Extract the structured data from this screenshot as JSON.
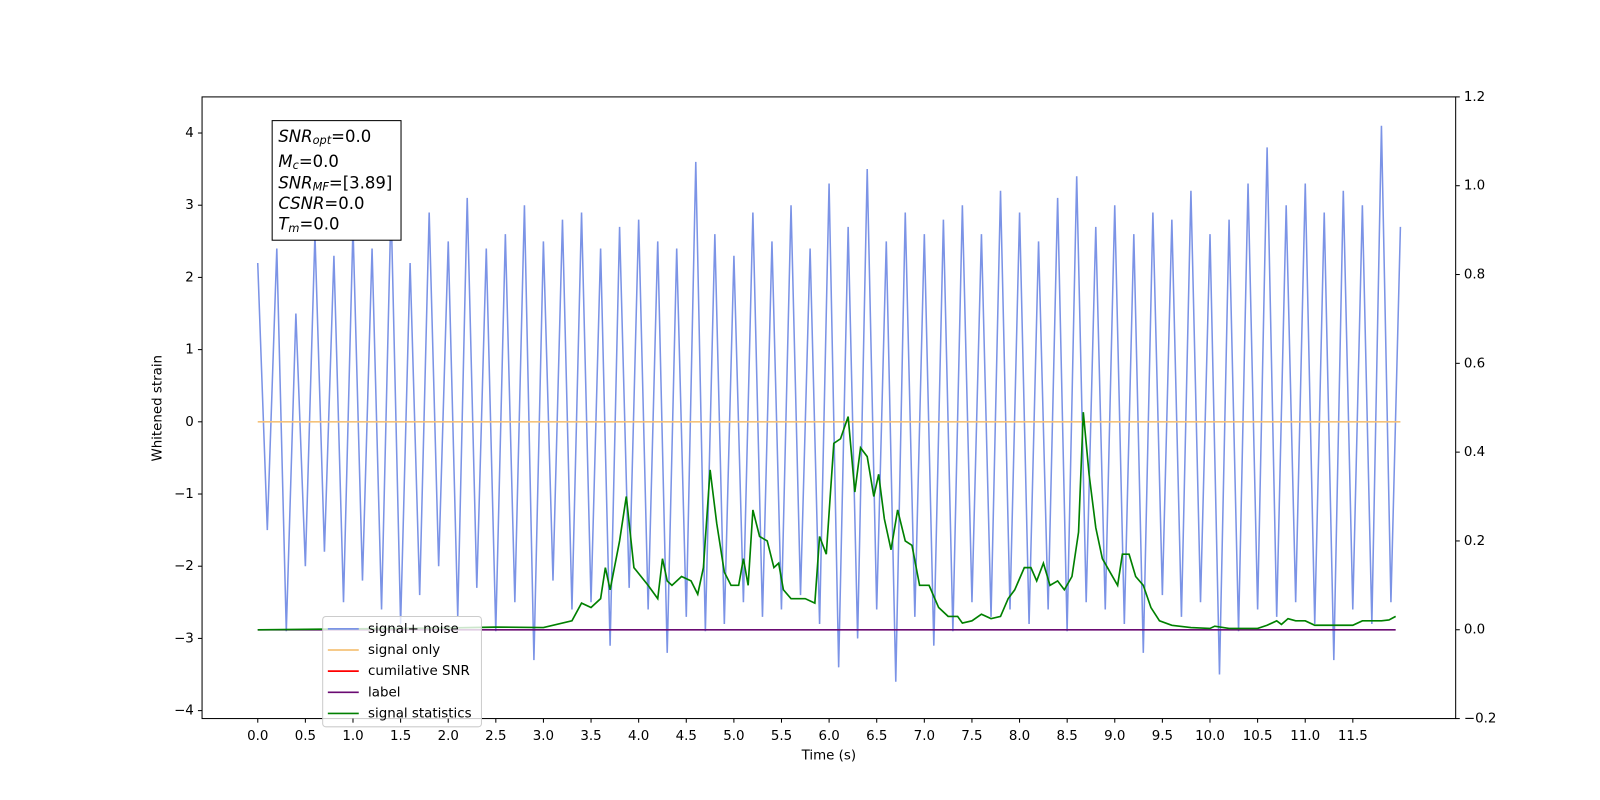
{
  "chart_data": {
    "type": "line",
    "xlabel": "Time (s)",
    "ylabel": "Whitened strain",
    "xlim": [
      -0.585,
      12.58
    ],
    "ylim": [
      -4.11,
      4.5
    ],
    "y2lim": [
      -0.2,
      1.2
    ],
    "xticks": [
      {
        "value": 0,
        "label": "0.0"
      },
      {
        "value": 0.5,
        "label": "0.5"
      },
      {
        "value": 1,
        "label": "1.0"
      },
      {
        "value": 1.5,
        "label": "1.5"
      },
      {
        "value": 2,
        "label": "2.0"
      },
      {
        "value": 2.5,
        "label": "2.5"
      },
      {
        "value": 3,
        "label": "3.0"
      },
      {
        "value": 3.5,
        "label": "3.5"
      },
      {
        "value": 4,
        "label": "4.0"
      },
      {
        "value": 4.5,
        "label": "4.5"
      },
      {
        "value": 5,
        "label": "5.0"
      },
      {
        "value": 5.5,
        "label": "5.5"
      },
      {
        "value": 6,
        "label": "6.0"
      },
      {
        "value": 6.5,
        "label": "6.5"
      },
      {
        "value": 7,
        "label": "7.0"
      },
      {
        "value": 7.5,
        "label": "7.5"
      },
      {
        "value": 8,
        "label": "8.0"
      },
      {
        "value": 8.5,
        "label": "8.5"
      },
      {
        "value": 9,
        "label": "9.0"
      },
      {
        "value": 9.5,
        "label": "9.5"
      },
      {
        "value": 10,
        "label": "10.0"
      },
      {
        "value": 10.5,
        "label": "10.5"
      },
      {
        "value": 11,
        "label": "11.0"
      },
      {
        "value": 11.5,
        "label": "11.5"
      }
    ],
    "yticks": [
      {
        "value": -4,
        "label": "−4"
      },
      {
        "value": -3,
        "label": "−3"
      },
      {
        "value": -2,
        "label": "−2"
      },
      {
        "value": -1,
        "label": "−1"
      },
      0,
      1,
      2,
      3,
      4
    ],
    "y2ticks": [
      {
        "value": -0.2,
        "label": "−0.2"
      },
      {
        "value": 0,
        "label": "0.0"
      },
      0.2,
      0.4,
      0.6,
      0.8,
      {
        "value": 1,
        "label": "1.0"
      },
      1.2
    ],
    "annotations": [
      {
        "main": "SNR",
        "sub": "opt",
        "text": "=0.0"
      },
      {
        "main": "M",
        "sub": "c",
        "text": "=0.0"
      },
      {
        "main": "SNR",
        "sub": "MF",
        "text": "=[3.89]"
      },
      {
        "main": "CSNR",
        "text": "=0.0"
      },
      {
        "main": "T",
        "sub": "m",
        "text": "=0.0"
      }
    ],
    "series": [
      {
        "name": "signal+ noise",
        "color": "#7b93e6",
        "x": [
          0,
          0.1,
          0.2,
          0.3,
          0.4,
          0.5,
          0.6,
          0.7,
          0.8,
          0.9,
          1,
          1.1,
          1.2,
          1.3,
          1.4,
          1.5,
          1.6,
          1.7,
          1.8,
          1.9,
          2,
          2.1,
          2.2,
          2.3,
          2.4,
          2.5,
          2.6,
          2.7,
          2.8,
          2.9,
          3,
          3.1,
          3.2,
          3.3,
          3.4,
          3.5,
          3.6,
          3.7,
          3.8,
          3.9,
          4,
          4.1,
          4.2,
          4.3,
          4.4,
          4.5,
          4.6,
          4.7,
          4.8,
          4.9,
          5,
          5.1,
          5.2,
          5.3,
          5.4,
          5.5,
          5.6,
          5.7,
          5.8,
          5.9,
          6,
          6.1,
          6.2,
          6.3,
          6.4,
          6.5,
          6.6,
          6.7,
          6.8,
          6.9,
          7,
          7.1,
          7.2,
          7.3,
          7.4,
          7.5,
          7.6,
          7.7,
          7.8,
          7.9,
          8,
          8.1,
          8.2,
          8.3,
          8.4,
          8.5,
          8.6,
          8.7,
          8.8,
          8.9,
          9,
          9.1,
          9.2,
          9.3,
          9.4,
          9.5,
          9.6,
          9.7,
          9.8,
          9.9,
          10,
          10.1,
          10.2,
          10.3,
          10.4,
          10.5,
          10.6,
          10.7,
          10.8,
          10.9,
          11,
          11.1,
          11.2,
          11.3,
          11.4,
          11.5,
          11.6,
          11.7,
          11.8,
          11.9,
          12
        ],
        "values": [
          2.2,
          -1.5,
          2.4,
          -2.9,
          1.5,
          -2.0,
          2.6,
          -1.8,
          2.3,
          -2.5,
          2.7,
          -2.2,
          2.4,
          -2.6,
          3.0,
          -2.8,
          2.2,
          -2.4,
          2.9,
          -2.0,
          2.5,
          -2.7,
          3.1,
          -2.3,
          2.4,
          -2.9,
          2.6,
          -2.5,
          3.0,
          -3.3,
          2.5,
          -2.2,
          2.8,
          -2.6,
          2.9,
          -2.5,
          2.4,
          -3.1,
          2.7,
          -2.3,
          2.8,
          -2.6,
          2.5,
          -3.2,
          2.4,
          -2.7,
          3.6,
          -2.9,
          2.6,
          -2.8,
          2.3,
          -2.5,
          2.9,
          -2.7,
          2.5,
          -2.6,
          3.0,
          -2.4,
          2.4,
          -2.8,
          3.3,
          -3.4,
          2.7,
          -3.0,
          3.5,
          -2.6,
          2.5,
          -3.6,
          2.9,
          -2.7,
          2.6,
          -3.1,
          2.8,
          -2.9,
          3.0,
          -2.5,
          2.6,
          -2.7,
          3.2,
          -2.6,
          2.9,
          -2.8,
          2.5,
          -2.6,
          3.1,
          -2.9,
          3.4,
          -2.5,
          2.7,
          -2.6,
          3.0,
          -2.8,
          2.6,
          -3.2,
          2.9,
          -2.4,
          2.8,
          -2.7,
          3.2,
          -2.5,
          2.6,
          -3.5,
          2.8,
          -2.9,
          3.3,
          -2.6,
          3.8,
          -2.7,
          3.0,
          -2.5,
          3.3,
          -2.8,
          2.9,
          -3.3,
          3.2,
          -2.6,
          3.0,
          -2.8,
          4.1,
          -2.5,
          2.7
        ]
      },
      {
        "name": "signal only",
        "color": "#f5c27a",
        "x": [
          0,
          12
        ],
        "values": [
          0,
          0
        ]
      },
      {
        "name": "cumilative SNR",
        "color": "#ff0000",
        "x": [],
        "values": []
      },
      {
        "name": "label",
        "color": "#6a0a72",
        "axis": "y2",
        "x": [
          0,
          11.95
        ],
        "values": [
          0,
          0
        ]
      },
      {
        "name": "signal statistics",
        "color": "#008000",
        "axis": "y2",
        "x": [
          0,
          1,
          2,
          2.5,
          3,
          3.3,
          3.4,
          3.5,
          3.6,
          3.65,
          3.7,
          3.8,
          3.87,
          3.95,
          4.1,
          4.2,
          4.25,
          4.3,
          4.35,
          4.45,
          4.55,
          4.62,
          4.68,
          4.75,
          4.82,
          4.9,
          4.97,
          5.05,
          5.1,
          5.15,
          5.2,
          5.27,
          5.35,
          5.42,
          5.47,
          5.52,
          5.6,
          5.75,
          5.85,
          5.9,
          5.97,
          6.05,
          6.12,
          6.2,
          6.27,
          6.33,
          6.4,
          6.47,
          6.52,
          6.58,
          6.65,
          6.72,
          6.8,
          6.87,
          6.95,
          7.05,
          7.15,
          7.25,
          7.35,
          7.4,
          7.5,
          7.6,
          7.7,
          7.8,
          7.88,
          7.95,
          8.05,
          8.12,
          8.18,
          8.25,
          8.32,
          8.4,
          8.47,
          8.55,
          8.62,
          8.67,
          8.73,
          8.8,
          8.87,
          8.95,
          9.03,
          9.08,
          9.15,
          9.22,
          9.3,
          9.38,
          9.47,
          9.6,
          9.8,
          10,
          10.05,
          10.2,
          10.5,
          10.6,
          10.7,
          10.75,
          10.82,
          10.9,
          11,
          11.1,
          11.3,
          11.5,
          11.6,
          11.7,
          11.8,
          11.88,
          11.95
        ],
        "values": [
          0,
          0.002,
          0.004,
          0.006,
          0.005,
          0.02,
          0.06,
          0.05,
          0.07,
          0.14,
          0.09,
          0.2,
          0.3,
          0.14,
          0.1,
          0.07,
          0.16,
          0.11,
          0.1,
          0.12,
          0.11,
          0.08,
          0.14,
          0.36,
          0.24,
          0.13,
          0.1,
          0.1,
          0.16,
          0.1,
          0.27,
          0.21,
          0.2,
          0.14,
          0.15,
          0.09,
          0.07,
          0.07,
          0.06,
          0.21,
          0.17,
          0.42,
          0.43,
          0.48,
          0.31,
          0.41,
          0.39,
          0.3,
          0.35,
          0.25,
          0.18,
          0.27,
          0.2,
          0.19,
          0.1,
          0.1,
          0.05,
          0.03,
          0.03,
          0.015,
          0.02,
          0.035,
          0.025,
          0.03,
          0.07,
          0.09,
          0.14,
          0.14,
          0.11,
          0.15,
          0.1,
          0.11,
          0.09,
          0.12,
          0.22,
          0.49,
          0.35,
          0.23,
          0.16,
          0.13,
          0.1,
          0.17,
          0.17,
          0.12,
          0.1,
          0.05,
          0.02,
          0.01,
          0.005,
          0.003,
          0.008,
          0.003,
          0.003,
          0.01,
          0.02,
          0.012,
          0.025,
          0.02,
          0.02,
          0.01,
          0.01,
          0.01,
          0.02,
          0.02,
          0.02,
          0.022,
          0.03
        ]
      }
    ]
  }
}
